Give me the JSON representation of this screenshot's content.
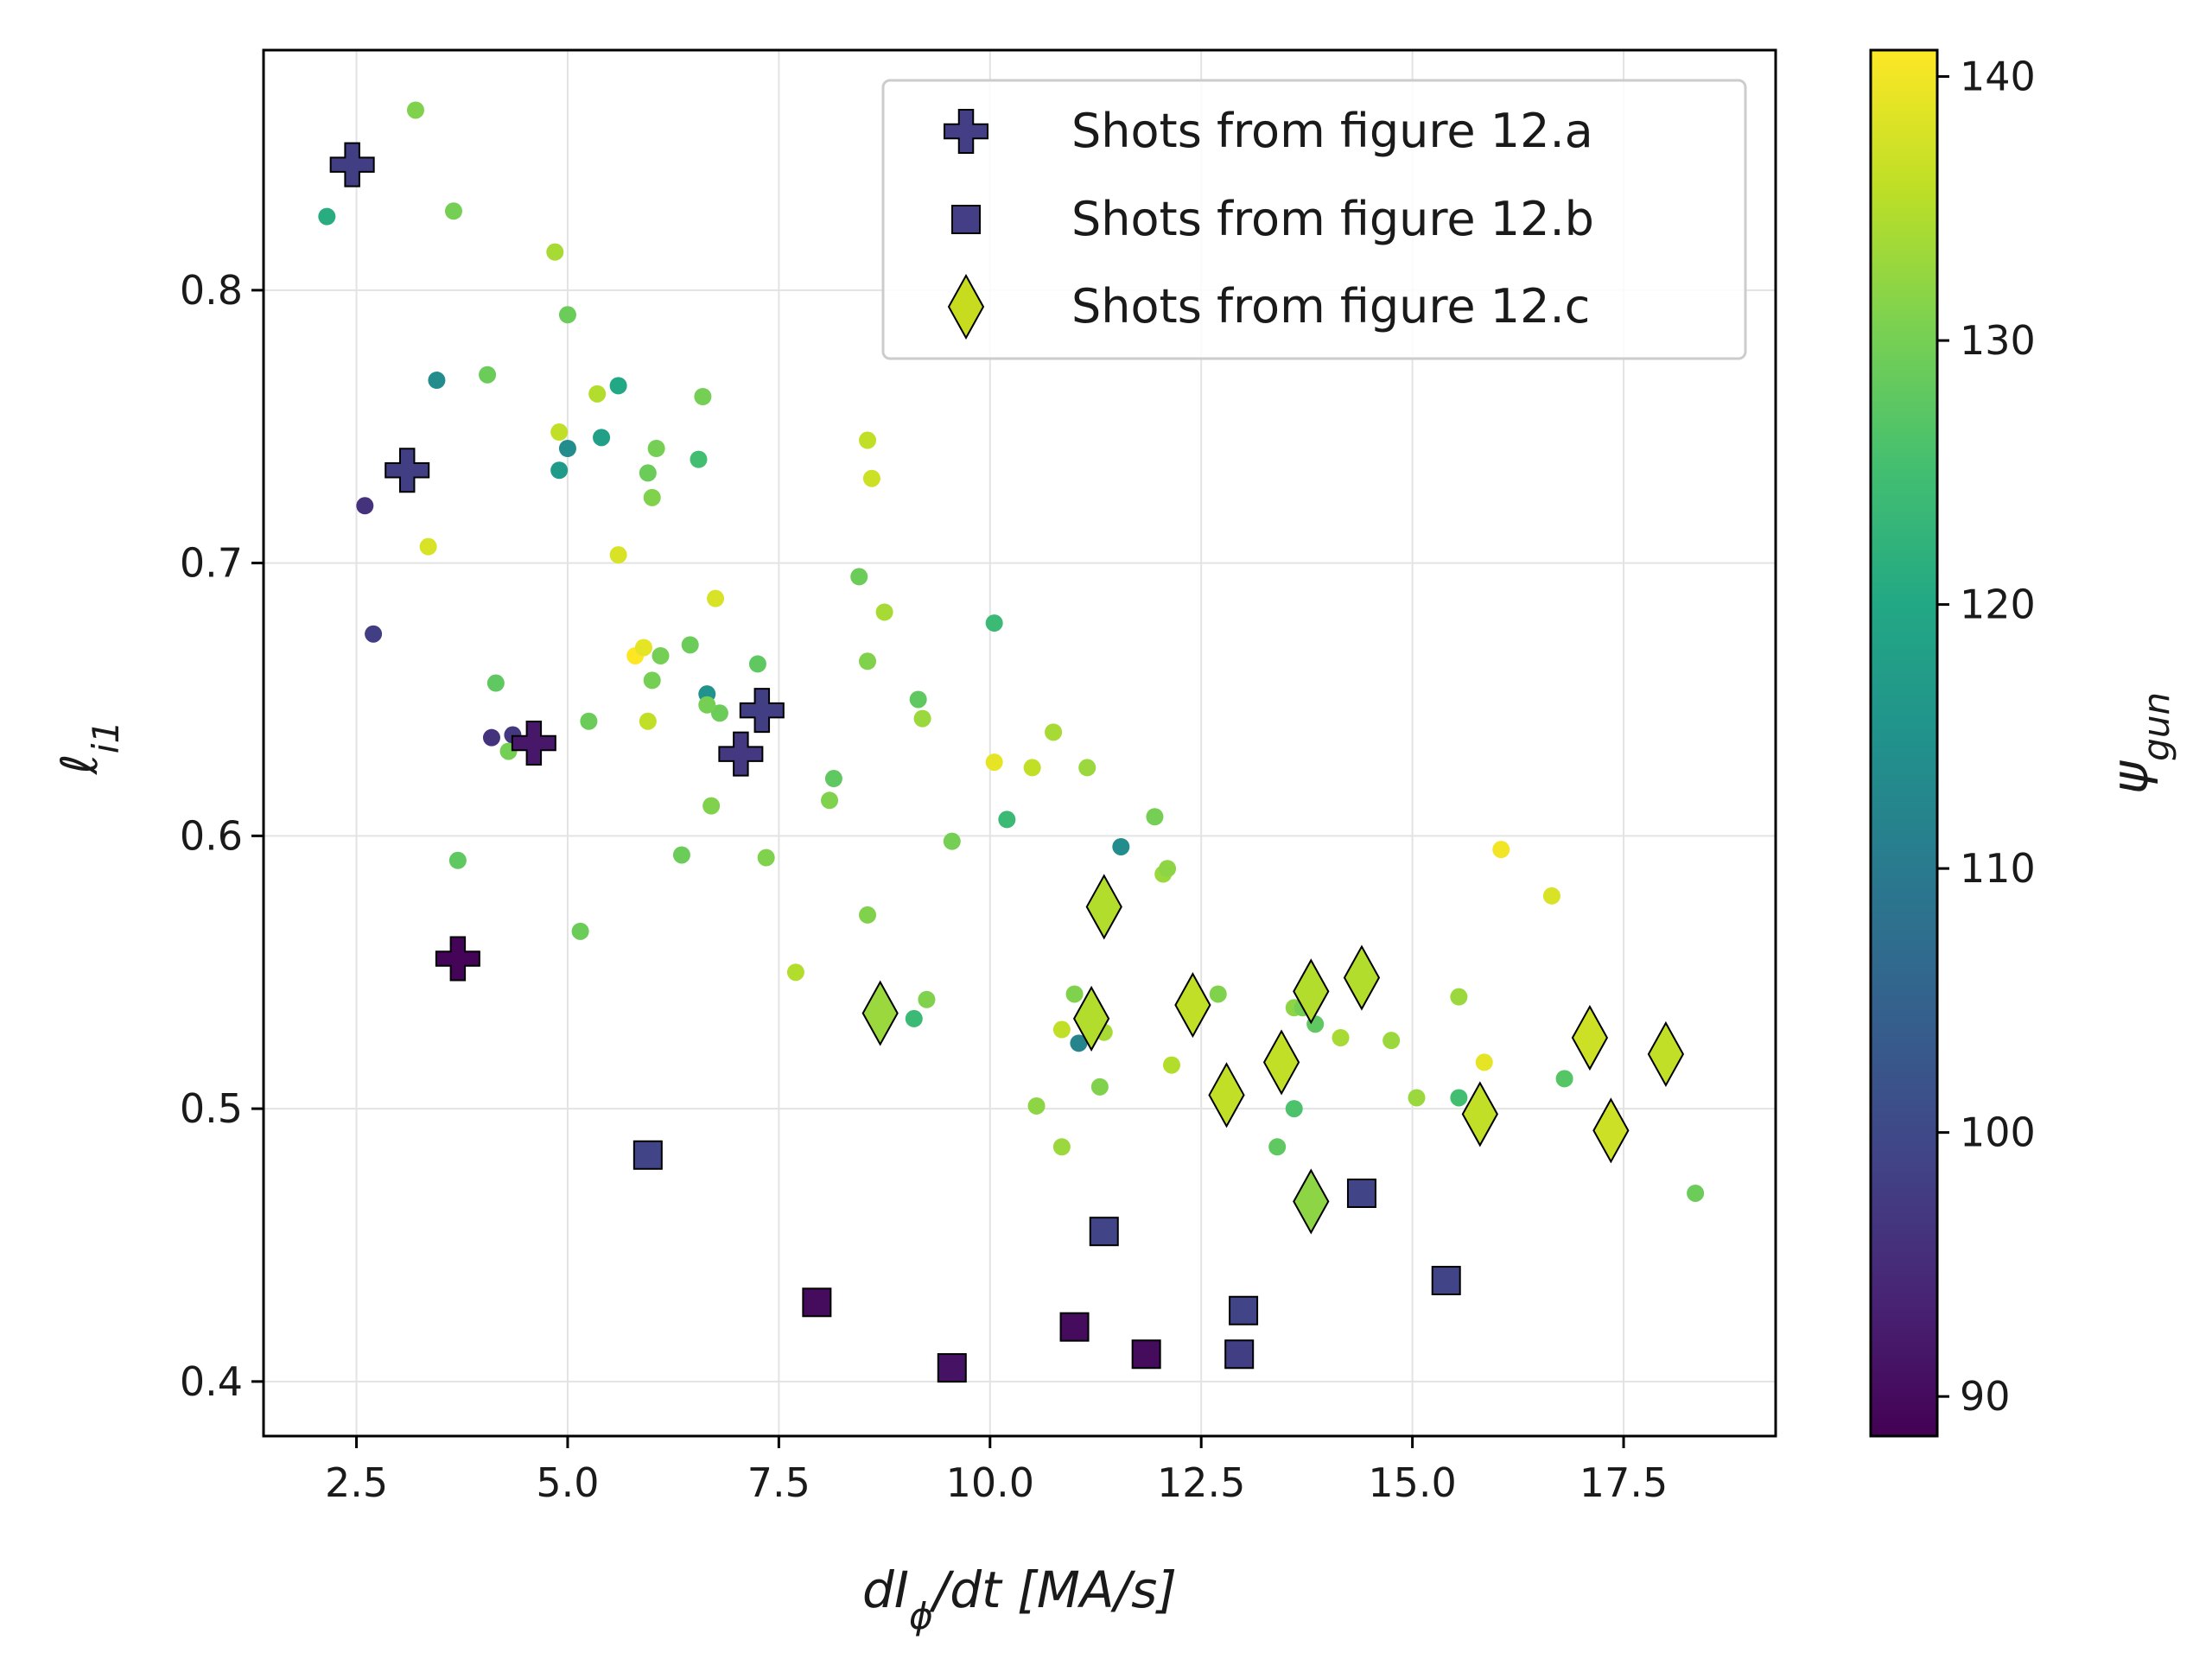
{
  "chart_data": {
    "type": "scatter",
    "xlabel_parts": {
      "main": "dI",
      "sub": "ϕ",
      "rest": "/dt [MA/s]"
    },
    "ylabel_parts": {
      "main": "ℓ",
      "sub": "i1"
    },
    "colorbar_label_parts": {
      "main": "ψ",
      "sub": "gun"
    },
    "xlim": [
      1.4,
      19.3
    ],
    "ylim": [
      0.38,
      0.888
    ],
    "xticks": [
      2.5,
      5.0,
      7.5,
      10.0,
      12.5,
      15.0,
      17.5
    ],
    "xtick_labels": [
      "2.5",
      "5.0",
      "7.5",
      "10.0",
      "12.5",
      "15.0",
      "17.5"
    ],
    "yticks": [
      0.4,
      0.5,
      0.6,
      0.7,
      0.8
    ],
    "ytick_labels": [
      "0.4",
      "0.5",
      "0.6",
      "0.7",
      "0.8"
    ],
    "grid": true,
    "legend_position": "upper-right",
    "colorbar": {
      "colormap": "viridis",
      "range": [
        88.5,
        141
      ],
      "ticks": [
        90,
        100,
        110,
        120,
        130,
        140
      ],
      "tick_labels": [
        "90",
        "100",
        "110",
        "120",
        "130",
        "140"
      ]
    },
    "series": [
      {
        "name": "",
        "marker": "circle",
        "points": [
          [
            2.15,
            0.827,
            121
          ],
          [
            3.2,
            0.866,
            131
          ],
          [
            3.65,
            0.829,
            130
          ],
          [
            3.45,
            0.767,
            114
          ],
          [
            4.05,
            0.769,
            129
          ],
          [
            4.85,
            0.814,
            134
          ],
          [
            5.0,
            0.791,
            129
          ],
          [
            2.6,
            0.721,
            96
          ],
          [
            2.7,
            0.674,
            98
          ],
          [
            3.35,
            0.706,
            138
          ],
          [
            4.9,
            0.748,
            136
          ],
          [
            4.9,
            0.734,
            117
          ],
          [
            5.0,
            0.742,
            114
          ],
          [
            5.35,
            0.762,
            135
          ],
          [
            5.4,
            0.746,
            118
          ],
          [
            5.6,
            0.765,
            120
          ],
          [
            5.6,
            0.703,
            138
          ],
          [
            5.95,
            0.733,
            129
          ],
          [
            6.0,
            0.724,
            131
          ],
          [
            6.05,
            0.742,
            130
          ],
          [
            6.55,
            0.738,
            125
          ],
          [
            6.6,
            0.761,
            130
          ],
          [
            5.8,
            0.666,
            141
          ],
          [
            5.9,
            0.669,
            139
          ],
          [
            6.0,
            0.657,
            130
          ],
          [
            6.1,
            0.666,
            130
          ],
          [
            6.45,
            0.67,
            129
          ],
          [
            6.65,
            0.652,
            115
          ],
          [
            6.8,
            0.645,
            129
          ],
          [
            6.65,
            0.648,
            130
          ],
          [
            6.75,
            0.687,
            138
          ],
          [
            5.95,
            0.642,
            136
          ],
          [
            4.1,
            0.636,
            96
          ],
          [
            4.35,
            0.637,
            97
          ],
          [
            4.3,
            0.631,
            130
          ],
          [
            4.15,
            0.656,
            128
          ],
          [
            3.7,
            0.591,
            128
          ],
          [
            5.15,
            0.565,
            129
          ],
          [
            5.25,
            0.642,
            129
          ],
          [
            6.35,
            0.593,
            129
          ],
          [
            6.7,
            0.611,
            131
          ],
          [
            7.25,
            0.663,
            128
          ],
          [
            7.35,
            0.592,
            131
          ],
          [
            7.7,
            0.55,
            135
          ],
          [
            8.45,
            0.695,
            129
          ],
          [
            8.55,
            0.745,
            136
          ],
          [
            8.6,
            0.731,
            137
          ],
          [
            8.75,
            0.682,
            134
          ],
          [
            8.55,
            0.664,
            131
          ],
          [
            8.1,
            0.613,
            131
          ],
          [
            8.15,
            0.621,
            128
          ],
          [
            8.55,
            0.571,
            131
          ],
          [
            9.15,
            0.65,
            128
          ],
          [
            9.2,
            0.643,
            133
          ],
          [
            9.55,
            0.598,
            130
          ],
          [
            10.05,
            0.678,
            124
          ],
          [
            10.2,
            0.606,
            124
          ],
          [
            10.05,
            0.627,
            139
          ],
          [
            10.5,
            0.625,
            136
          ],
          [
            10.75,
            0.638,
            134
          ],
          [
            11.15,
            0.625,
            133
          ],
          [
            9.1,
            0.533,
            124
          ],
          [
            9.25,
            0.54,
            131
          ],
          [
            11.0,
            0.542,
            131
          ],
          [
            10.85,
            0.529,
            136
          ],
          [
            11.05,
            0.524,
            112
          ],
          [
            11.35,
            0.528,
            134
          ],
          [
            10.55,
            0.501,
            132
          ],
          [
            10.85,
            0.486,
            133
          ],
          [
            11.3,
            0.508,
            131
          ],
          [
            11.55,
            0.596,
            114
          ],
          [
            11.95,
            0.607,
            130
          ],
          [
            12.05,
            0.586,
            133
          ],
          [
            12.1,
            0.588,
            132
          ],
          [
            12.15,
            0.516,
            135
          ],
          [
            12.7,
            0.542,
            131
          ],
          [
            13.4,
            0.486,
            128
          ],
          [
            13.6,
            0.5,
            126
          ],
          [
            13.6,
            0.537,
            132
          ],
          [
            13.7,
            0.537,
            130
          ],
          [
            13.85,
            0.531,
            128
          ],
          [
            14.15,
            0.526,
            134
          ],
          [
            14.75,
            0.525,
            133
          ],
          [
            15.05,
            0.504,
            133
          ],
          [
            15.55,
            0.541,
            133
          ],
          [
            15.55,
            0.504,
            125
          ],
          [
            15.85,
            0.517,
            139
          ],
          [
            16.05,
            0.595,
            140
          ],
          [
            16.65,
            0.578,
            138
          ],
          [
            16.8,
            0.511,
            127
          ],
          [
            18.35,
            0.469,
            129
          ]
        ]
      },
      {
        "name": "Shots from figure 12.a",
        "marker": "plus",
        "points": [
          [
            2.45,
            0.846,
            98
          ],
          [
            3.1,
            0.734,
            98
          ],
          [
            3.7,
            0.555,
            89
          ],
          [
            4.6,
            0.634,
            92
          ],
          [
            7.05,
            0.63,
            97
          ],
          [
            7.3,
            0.646,
            98
          ]
        ]
      },
      {
        "name": "Shots from figure 12.b",
        "marker": "square",
        "points": [
          [
            5.95,
            0.483,
            99
          ],
          [
            7.95,
            0.429,
            90
          ],
          [
            9.55,
            0.405,
            91
          ],
          [
            11.0,
            0.42,
            90
          ],
          [
            11.85,
            0.41,
            90
          ],
          [
            11.35,
            0.455,
            99
          ],
          [
            13.0,
            0.426,
            99
          ],
          [
            12.95,
            0.41,
            98
          ],
          [
            14.4,
            0.469,
            99
          ],
          [
            15.4,
            0.437,
            99
          ]
        ]
      },
      {
        "name": "Shots from figure 12.c",
        "marker": "diamond",
        "points": [
          [
            8.7,
            0.535,
            133
          ],
          [
            11.2,
            0.533,
            135
          ],
          [
            11.35,
            0.574,
            135
          ],
          [
            12.4,
            0.538,
            136
          ],
          [
            12.8,
            0.505,
            136
          ],
          [
            13.45,
            0.517,
            136
          ],
          [
            13.8,
            0.543,
            135
          ],
          [
            13.8,
            0.466,
            132
          ],
          [
            14.4,
            0.548,
            135
          ],
          [
            15.8,
            0.498,
            136
          ],
          [
            17.1,
            0.526,
            137
          ],
          [
            17.35,
            0.492,
            137
          ],
          [
            18.0,
            0.52,
            136
          ]
        ]
      }
    ]
  },
  "legend": {
    "entries": [
      "Shots from figure 12.a",
      "Shots from figure 12.b",
      "Shots from figure 12.c"
    ],
    "legend_marker_color": "#433e85"
  }
}
